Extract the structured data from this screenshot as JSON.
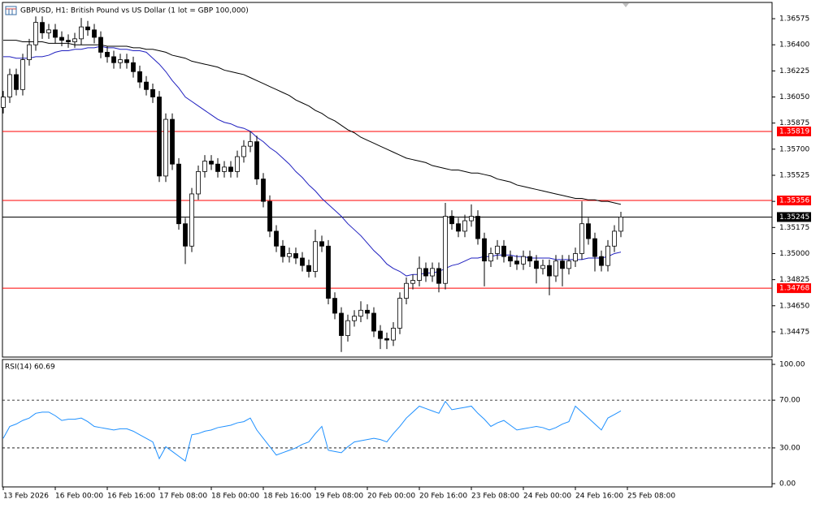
{
  "chart_data": {
    "type": "candlestick",
    "title": "GBPUSD, H1:  British Pound vs US Dollar (1 lot = GBP 100,000)",
    "categories": [
      "13 Feb 2026",
      null,
      null,
      null,
      null,
      null,
      null,
      null,
      "16 Feb 00:00",
      null,
      null,
      null,
      null,
      null,
      null,
      null,
      "16 Feb 16:00",
      null,
      null,
      null,
      null,
      null,
      null,
      null,
      "17 Feb 08:00",
      null,
      null,
      null,
      null,
      null,
      null,
      null,
      "18 Feb 00:00",
      null,
      null,
      null,
      null,
      null,
      null,
      null,
      "18 Feb 16:00",
      null,
      null,
      null,
      null,
      null,
      null,
      null,
      "19 Feb 08:00",
      null,
      null,
      null,
      null,
      null,
      null,
      null,
      "20 Feb 00:00",
      null,
      null,
      null,
      null,
      null,
      null,
      null,
      "20 Feb 16:00",
      null,
      null,
      null,
      null,
      null,
      null,
      null,
      "23 Feb 08:00",
      null,
      null,
      null,
      null,
      null,
      null,
      null,
      "24 Feb 00:00",
      null,
      null,
      null,
      null,
      null,
      null,
      null,
      "24 Feb 16:00",
      null,
      null,
      null,
      null,
      null,
      null,
      null,
      "25 Feb 08:00"
    ],
    "open": [
      1.3598,
      1.3605,
      1.362,
      1.361,
      1.363,
      1.364,
      1.3655,
      1.3648,
      1.365,
      1.3645,
      1.3643,
      1.3642,
      1.3644,
      1.3652,
      1.365,
      1.3645,
      1.3635,
      1.3632,
      1.3628,
      1.363,
      1.3628,
      1.3622,
      1.3615,
      1.361,
      1.3605,
      1.3552,
      1.359,
      1.356,
      1.352,
      1.3505,
      1.354,
      1.3555,
      1.3562,
      1.356,
      1.3555,
      1.3558,
      1.3555,
      1.3565,
      1.3572,
      1.3575,
      1.355,
      1.3535,
      1.3515,
      1.3505,
      1.3498,
      1.35,
      1.3497,
      1.3492,
      1.3488,
      1.3508,
      1.3505,
      1.347,
      1.346,
      1.3445,
      1.3455,
      1.3458,
      1.3462,
      1.346,
      1.3448,
      1.3443,
      1.3442,
      1.345,
      1.347,
      1.348,
      1.3482,
      1.349,
      1.3485,
      1.349,
      1.348,
      1.3525,
      1.352,
      1.3515,
      1.3522,
      1.3525,
      1.351,
      1.3495,
      1.35,
      1.3505,
      1.3498,
      1.3495,
      1.3493,
      1.3498,
      1.3495,
      1.349,
      1.3492,
      1.3485,
      1.3495,
      1.349,
      1.3495,
      1.35,
      1.352,
      1.351,
      1.3498,
      1.3492,
      1.3505,
      1.3515,
      null
    ],
    "high": [
      1.3609,
      1.3624,
      1.3624,
      1.3634,
      1.3644,
      1.3659,
      1.3659,
      1.3654,
      1.3654,
      1.3649,
      1.3647,
      1.3648,
      1.3658,
      1.3656,
      1.3654,
      1.3649,
      1.3639,
      1.3636,
      1.3634,
      1.3634,
      1.3632,
      1.3626,
      1.3619,
      1.3614,
      1.3609,
      1.3594,
      1.3594,
      1.3564,
      1.3524,
      1.3544,
      1.3559,
      1.3566,
      1.3566,
      1.3564,
      1.3562,
      1.3562,
      1.3569,
      1.3576,
      1.3582,
      1.3579,
      1.3554,
      1.3539,
      1.3519,
      1.3509,
      1.3504,
      1.3504,
      1.3501,
      1.3496,
      1.3516,
      1.3512,
      1.3509,
      1.3474,
      1.3464,
      1.3459,
      1.3462,
      1.3468,
      1.3466,
      1.3464,
      1.3452,
      1.3447,
      1.3454,
      1.3474,
      1.3484,
      1.3486,
      1.3498,
      1.3494,
      1.3494,
      1.3494,
      1.3534,
      1.3529,
      1.3524,
      1.3526,
      1.3533,
      1.3529,
      1.3514,
      1.3504,
      1.3509,
      1.3509,
      1.3502,
      1.3499,
      1.3502,
      1.3502,
      1.3499,
      1.3496,
      1.3496,
      1.3499,
      1.3499,
      1.3499,
      1.3504,
      1.3535,
      1.3524,
      1.3514,
      1.3502,
      1.3509,
      1.3519,
      1.3528,
      null
    ],
    "low": [
      1.3594,
      1.3601,
      1.3606,
      1.3606,
      1.3626,
      1.3636,
      1.3644,
      1.3644,
      1.3641,
      1.3639,
      1.3638,
      1.3638,
      1.364,
      1.3646,
      1.3641,
      1.3631,
      1.3628,
      1.3624,
      1.3624,
      1.3624,
      1.3618,
      1.3611,
      1.3606,
      1.3601,
      1.3548,
      1.3548,
      1.3556,
      1.3516,
      1.3493,
      1.3501,
      1.3536,
      1.3551,
      1.3556,
      1.3551,
      1.3551,
      1.3551,
      1.3551,
      1.3561,
      1.3568,
      1.3546,
      1.3531,
      1.3511,
      1.3501,
      1.3494,
      1.3494,
      1.3493,
      1.3488,
      1.3484,
      1.3484,
      1.3501,
      1.3466,
      1.3456,
      1.3434,
      1.3441,
      1.3451,
      1.3454,
      1.3456,
      1.3444,
      1.3436,
      1.3436,
      1.3438,
      1.3446,
      1.3466,
      1.3476,
      1.3478,
      1.3481,
      1.3481,
      1.3474,
      1.3476,
      1.3516,
      1.3511,
      1.3511,
      1.3518,
      1.3506,
      1.3478,
      1.3491,
      1.3496,
      1.3494,
      1.3491,
      1.3489,
      1.3489,
      1.3491,
      1.348,
      1.3486,
      1.3472,
      1.3481,
      1.3478,
      1.3486,
      1.3491,
      1.3496,
      1.3506,
      1.3488,
      1.3488,
      1.3488,
      1.3501,
      1.3511,
      null
    ],
    "close": [
      1.3605,
      1.362,
      1.361,
      1.363,
      1.364,
      1.3655,
      1.3648,
      1.365,
      1.3645,
      1.3643,
      1.3642,
      1.3644,
      1.3652,
      1.365,
      1.3645,
      1.3635,
      1.3632,
      1.3628,
      1.363,
      1.3628,
      1.3622,
      1.3615,
      1.361,
      1.3605,
      1.3552,
      1.359,
      1.356,
      1.352,
      1.3505,
      1.354,
      1.3555,
      1.3562,
      1.356,
      1.3555,
      1.3558,
      1.3555,
      1.3565,
      1.3572,
      1.3575,
      1.355,
      1.3535,
      1.3515,
      1.3505,
      1.3498,
      1.35,
      1.3497,
      1.3492,
      1.3488,
      1.3508,
      1.3505,
      1.347,
      1.346,
      1.3445,
      1.3455,
      1.3458,
      1.3462,
      1.346,
      1.3448,
      1.3443,
      1.3442,
      1.345,
      1.347,
      1.348,
      1.3482,
      1.349,
      1.3485,
      1.349,
      1.348,
      1.3525,
      1.352,
      1.3515,
      1.3522,
      1.3525,
      1.351,
      1.3495,
      1.35,
      1.3505,
      1.3498,
      1.3495,
      1.3493,
      1.3498,
      1.3495,
      1.349,
      1.3492,
      1.3485,
      1.3495,
      1.349,
      1.3495,
      1.35,
      1.352,
      1.351,
      1.3498,
      1.3492,
      1.3505,
      1.3515,
      1.35245,
      null
    ],
    "series": [
      {
        "color": "#000000",
        "values": [
          1.3643,
          1.3643,
          1.3643,
          1.3642,
          1.3642,
          1.3642,
          1.3642,
          1.3641,
          1.3641,
          1.3641,
          1.3641,
          1.364,
          1.364,
          1.364,
          1.364,
          1.364,
          1.3639,
          1.3639,
          1.3639,
          1.3639,
          1.3638,
          1.3638,
          1.3637,
          1.3637,
          1.3636,
          1.3635,
          1.3633,
          1.3632,
          1.3631,
          1.3629,
          1.3628,
          1.3627,
          1.3626,
          1.3625,
          1.3623,
          1.3622,
          1.3621,
          1.362,
          1.3618,
          1.3616,
          1.3614,
          1.3612,
          1.361,
          1.3608,
          1.3606,
          1.3603,
          1.3601,
          1.3599,
          1.3596,
          1.3594,
          1.3591,
          1.3589,
          1.3586,
          1.3583,
          1.3581,
          1.3578,
          1.3576,
          1.3574,
          1.3572,
          1.357,
          1.3568,
          1.3566,
          1.3564,
          1.3563,
          1.3562,
          1.3561,
          1.3559,
          1.3558,
          1.3557,
          1.3556,
          1.3556,
          1.3555,
          1.3554,
          1.3554,
          1.3553,
          1.3552,
          1.355,
          1.3549,
          1.3548,
          1.3546,
          1.3545,
          1.3544,
          1.3543,
          1.3542,
          1.3541,
          1.354,
          1.3539,
          1.3538,
          1.3537,
          1.3537,
          1.3536,
          1.3536,
          1.3535,
          1.3535,
          1.3534,
          1.3533,
          null
        ]
      },
      {
        "color": "#1f1fbf",
        "values": [
          1.3632,
          1.3632,
          1.3631,
          1.3631,
          1.3631,
          1.3632,
          1.3632,
          1.3633,
          1.3635,
          1.3636,
          1.3636,
          1.3637,
          1.3637,
          1.3638,
          1.3638,
          1.3639,
          1.3638,
          1.3638,
          1.3637,
          1.3637,
          1.3636,
          1.3636,
          1.3635,
          1.3631,
          1.3627,
          1.3622,
          1.3616,
          1.3611,
          1.3605,
          1.3602,
          1.3599,
          1.3596,
          1.3593,
          1.359,
          1.3588,
          1.3587,
          1.3585,
          1.3584,
          1.3582,
          1.3578,
          1.3575,
          1.3571,
          1.3568,
          1.3564,
          1.356,
          1.3555,
          1.3551,
          1.3546,
          1.3542,
          1.3537,
          1.3533,
          1.3529,
          1.3525,
          1.352,
          1.3516,
          1.3512,
          1.3507,
          1.3502,
          1.3498,
          1.3493,
          1.349,
          1.3488,
          1.3485,
          1.3486,
          1.3486,
          1.3487,
          1.3487,
          1.3488,
          1.349,
          1.3492,
          1.3493,
          1.3495,
          1.3497,
          1.3497,
          1.3498,
          1.3498,
          1.3499,
          1.3499,
          1.3499,
          1.3498,
          1.3498,
          1.3497,
          1.3497,
          1.3497,
          1.3497,
          1.3496,
          1.3496,
          1.3496,
          1.3496,
          1.3496,
          1.3497,
          1.3497,
          1.3497,
          1.3498,
          1.35,
          1.3501,
          null
        ]
      }
    ],
    "ylim": [
      1.34306,
      1.36684
    ],
    "yticks": [
      1.36575,
      {
        "value": 1.364,
        "label": "1.36400"
      },
      1.36225,
      {
        "value": 1.3605,
        "label": "1.36050"
      },
      1.35875,
      {
        "value": 1.357,
        "label": "1.35700"
      },
      1.35525,
      {
        "value": 1.3535,
        "label": "1.35350"
      },
      1.35175,
      {
        "value": 1.35,
        "label": "1.35000"
      },
      1.34825,
      {
        "value": 1.3465,
        "label": "1.34650"
      },
      1.34475
    ],
    "levels": [
      {
        "value": 1.35819,
        "color": "#ff0000"
      },
      {
        "value": 1.35356,
        "color": "#ff0000"
      },
      {
        "value": 1.34768,
        "color": "#ff0000"
      },
      {
        "value": 1.35245,
        "color": "#000000"
      }
    ],
    "rsi": {
      "title": "RSI(14) 60.69",
      "color": "#1e90ff",
      "values": [
        38,
        48,
        50,
        53,
        55,
        59,
        60,
        60,
        57,
        53,
        54,
        54,
        55,
        52,
        48,
        47,
        46,
        45,
        46,
        46,
        44,
        41,
        38,
        35,
        21,
        31,
        27,
        23,
        19,
        41,
        42,
        44,
        45,
        47,
        48,
        49,
        51,
        52,
        55,
        45,
        38,
        31,
        24,
        26,
        28,
        30,
        33,
        35,
        42,
        48,
        28,
        27,
        26,
        31,
        35,
        36,
        37,
        38,
        37,
        35,
        42,
        48,
        55,
        60,
        65,
        63,
        61,
        59,
        69,
        62,
        63,
        64,
        65,
        59,
        54,
        48,
        51,
        53,
        49,
        45,
        46,
        47,
        48,
        47,
        45,
        47,
        50,
        52,
        65,
        60,
        55,
        50,
        45,
        55,
        58,
        61,
        null
      ],
      "ylim": [
        -2.7,
        104.1
      ],
      "yticks": [
        {
          "value": 100,
          "label": "100.00"
        },
        {
          "value": 70,
          "label": "70.00"
        },
        {
          "value": 30,
          "label": "30.00"
        },
        {
          "value": 0,
          "label": "0.00"
        }
      ],
      "levels": [
        70,
        30
      ]
    }
  }
}
